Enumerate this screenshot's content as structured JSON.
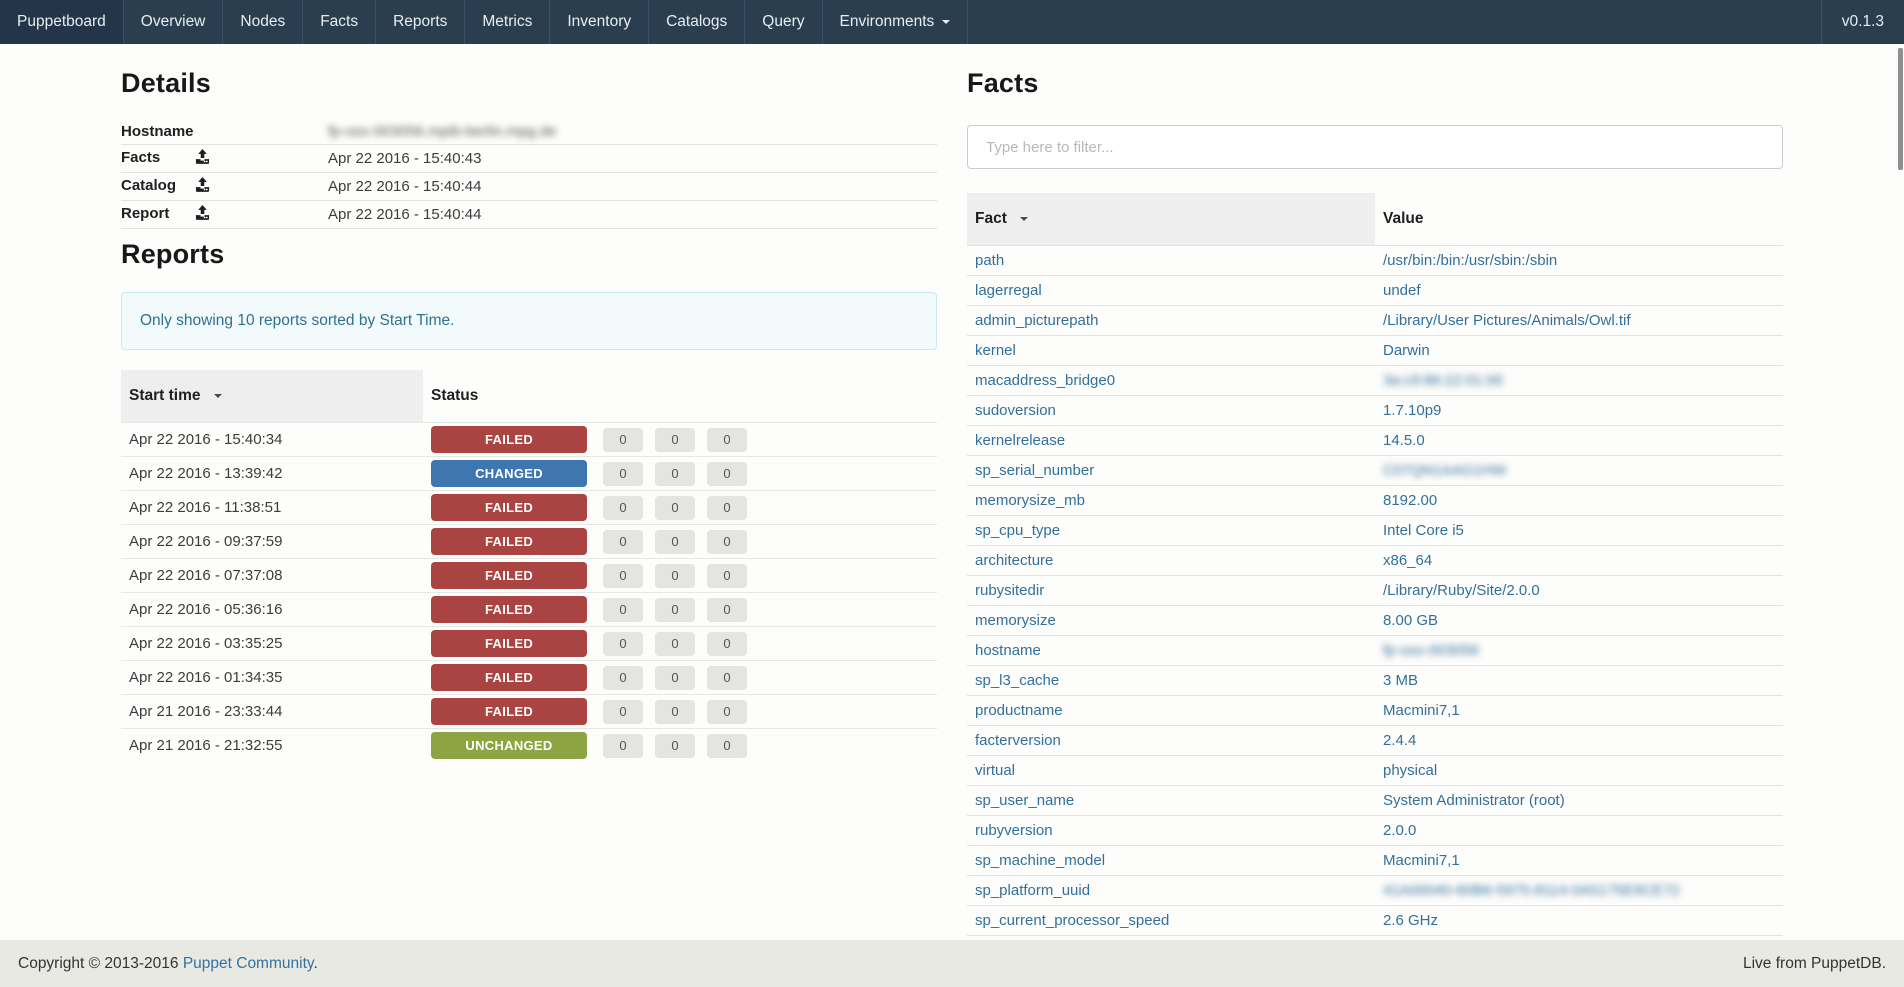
{
  "navbar": {
    "brand": "Puppetboard",
    "items": [
      "Overview",
      "Nodes",
      "Facts",
      "Reports",
      "Metrics",
      "Inventory",
      "Catalogs",
      "Query"
    ],
    "environments_label": "Environments",
    "version": "v0.1.3"
  },
  "details": {
    "title": "Details",
    "rows": [
      {
        "label": "Hostname",
        "icon": null,
        "value": "fp-osx-003056.mpib-berlin.mpg.de",
        "blurred": true
      },
      {
        "label": "Facts",
        "icon": "upload-icon",
        "value": "Apr 22 2016 - 15:40:43",
        "blurred": false
      },
      {
        "label": "Catalog",
        "icon": "upload-icon",
        "value": "Apr 22 2016 - 15:40:44",
        "blurred": false
      },
      {
        "label": "Report",
        "icon": "upload-icon",
        "value": "Apr 22 2016 - 15:40:44",
        "blurred": false
      }
    ]
  },
  "reports": {
    "title": "Reports",
    "alert_text": "Only showing 10 reports sorted by Start Time.",
    "columns": {
      "start_time": "Start time",
      "status": "Status"
    },
    "status_colors": {
      "FAILED": "#a94442",
      "CHANGED": "#3e76af",
      "UNCHANGED": "#8ca442"
    },
    "rows": [
      {
        "start": "Apr 22 2016 - 15:40:34",
        "status": "FAILED",
        "counts": [
          "0",
          "0",
          "0"
        ]
      },
      {
        "start": "Apr 22 2016 - 13:39:42",
        "status": "CHANGED",
        "counts": [
          "0",
          "0",
          "0"
        ]
      },
      {
        "start": "Apr 22 2016 - 11:38:51",
        "status": "FAILED",
        "counts": [
          "0",
          "0",
          "0"
        ]
      },
      {
        "start": "Apr 22 2016 - 09:37:59",
        "status": "FAILED",
        "counts": [
          "0",
          "0",
          "0"
        ]
      },
      {
        "start": "Apr 22 2016 - 07:37:08",
        "status": "FAILED",
        "counts": [
          "0",
          "0",
          "0"
        ]
      },
      {
        "start": "Apr 22 2016 - 05:36:16",
        "status": "FAILED",
        "counts": [
          "0",
          "0",
          "0"
        ]
      },
      {
        "start": "Apr 22 2016 - 03:35:25",
        "status": "FAILED",
        "counts": [
          "0",
          "0",
          "0"
        ]
      },
      {
        "start": "Apr 22 2016 - 01:34:35",
        "status": "FAILED",
        "counts": [
          "0",
          "0",
          "0"
        ]
      },
      {
        "start": "Apr 21 2016 - 23:33:44",
        "status": "FAILED",
        "counts": [
          "0",
          "0",
          "0"
        ]
      },
      {
        "start": "Apr 21 2016 - 21:32:55",
        "status": "UNCHANGED",
        "counts": [
          "0",
          "0",
          "0"
        ]
      }
    ]
  },
  "facts": {
    "title": "Facts",
    "filter_placeholder": "Type here to filter...",
    "columns": {
      "fact": "Fact",
      "value": "Value"
    },
    "rows": [
      {
        "fact": "path",
        "value": "/usr/bin:/bin:/usr/sbin:/sbin",
        "blurred": false
      },
      {
        "fact": "lagerregal",
        "value": "undef",
        "blurred": false
      },
      {
        "fact": "admin_picturepath",
        "value": "/Library/User Pictures/Animals/Owl.tif",
        "blurred": false
      },
      {
        "fact": "kernel",
        "value": "Darwin",
        "blurred": false
      },
      {
        "fact": "macaddress_bridge0",
        "value": "3a:c9:86:22:01:00",
        "blurred": true
      },
      {
        "fact": "sudoversion",
        "value": "1.7.10p9",
        "blurred": false
      },
      {
        "fact": "kernelrelease",
        "value": "14.5.0",
        "blurred": false
      },
      {
        "fact": "sp_serial_number",
        "value": "C07QN1AAG1HW",
        "blurred": true
      },
      {
        "fact": "memorysize_mb",
        "value": "8192.00",
        "blurred": false
      },
      {
        "fact": "sp_cpu_type",
        "value": "Intel Core i5",
        "blurred": false
      },
      {
        "fact": "architecture",
        "value": "x86_64",
        "blurred": false
      },
      {
        "fact": "rubysitedir",
        "value": "/Library/Ruby/Site/2.0.0",
        "blurred": false
      },
      {
        "fact": "memorysize",
        "value": "8.00 GB",
        "blurred": false
      },
      {
        "fact": "hostname",
        "value": "fp-osx-003056",
        "blurred": true
      },
      {
        "fact": "sp_l3_cache",
        "value": "3 MB",
        "blurred": false
      },
      {
        "fact": "productname",
        "value": "Macmini7,1",
        "blurred": false
      },
      {
        "fact": "facterversion",
        "value": "2.4.4",
        "blurred": false
      },
      {
        "fact": "virtual",
        "value": "physical",
        "blurred": false
      },
      {
        "fact": "sp_user_name",
        "value": "System Administrator (root)",
        "blurred": false
      },
      {
        "fact": "rubyversion",
        "value": "2.0.0",
        "blurred": false
      },
      {
        "fact": "sp_machine_model",
        "value": "Macmini7,1",
        "blurred": false
      },
      {
        "fact": "sp_platform_uuid",
        "value": "41A00040-60B6-5975-8114-0A5175E9CE72",
        "blurred": true
      },
      {
        "fact": "sp_current_processor_speed",
        "value": "2.6 GHz",
        "blurred": false
      }
    ]
  },
  "footer": {
    "copyright_prefix": "Copyright © 2013-2016 ",
    "copyright_link": "Puppet Community",
    "copyright_suffix": ".",
    "live_text": "Live from PuppetDB."
  }
}
